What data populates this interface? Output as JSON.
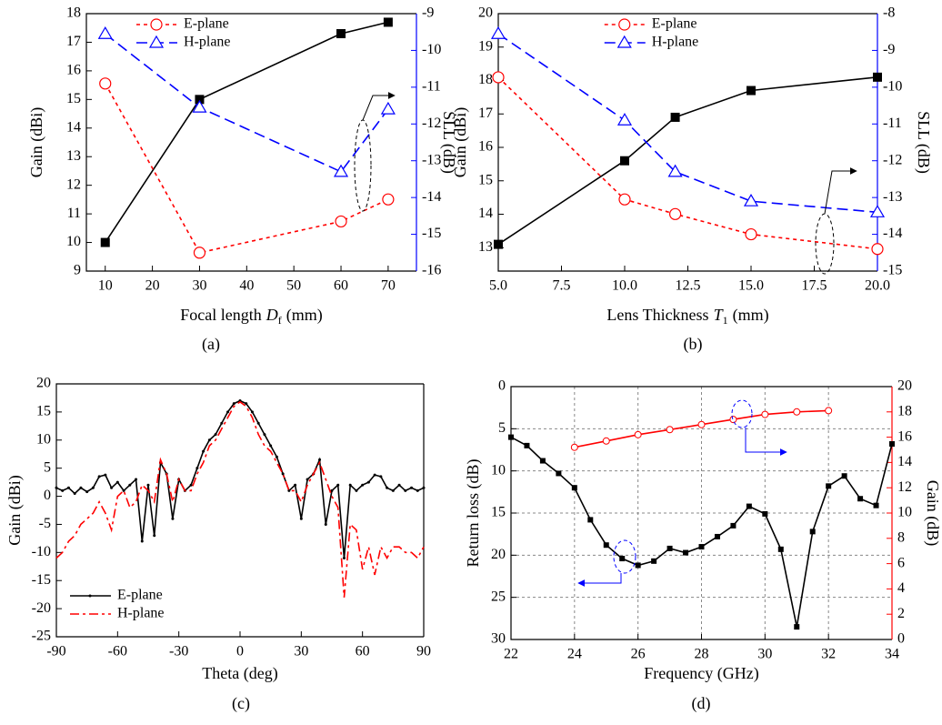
{
  "chart_data": [
    {
      "type": "line",
      "xlabel": {
        "text": "Focal length",
        "symbol": "D",
        "sub": "f",
        "unit": "(mm)"
      },
      "ylabel": "Gain (dBi)",
      "y2label": "SLL (dB)",
      "caption": "(a)",
      "xlim": [
        6,
        76
      ],
      "xticks": [
        10,
        20,
        30,
        40,
        50,
        60,
        70
      ],
      "ylim": [
        9,
        18
      ],
      "yticks": [
        9,
        10,
        11,
        12,
        13,
        14,
        15,
        16,
        17,
        18
      ],
      "y2lim": [
        -16,
        -9
      ],
      "y2ticks": [
        -16,
        -15,
        -14,
        -13,
        -12,
        -11,
        -10,
        -9
      ],
      "y2color": "#0000ff",
      "grid": false,
      "legend": "upper left",
      "series": [
        {
          "color": "#000000",
          "linestyle": "solid",
          "marker": "square",
          "x": [
            10,
            30,
            60,
            70
          ],
          "values": [
            10,
            15,
            17.3,
            17.7
          ]
        },
        {
          "name": "E-plane",
          "color": "#ff0000",
          "linestyle": "dotted",
          "marker": "circle",
          "axis": "y2",
          "x": [
            10,
            30,
            60,
            70
          ],
          "values": [
            -10.9,
            -15.5,
            -14.65,
            -14.05
          ]
        },
        {
          "name": "H-plane",
          "color": "#0000ff",
          "linestyle": "dashed",
          "marker": "triangle",
          "axis": "y2",
          "x": [
            10,
            30,
            60,
            70
          ],
          "values": [
            -9.55,
            -11.55,
            -13.3,
            -11.6
          ]
        }
      ]
    },
    {
      "type": "line",
      "xlabel": {
        "text": "Lens Thickness",
        "symbol": "T",
        "sub": "1",
        "unit": "(mm)"
      },
      "ylabel": "Gain (dBi)",
      "y2label": "SLL (dB)",
      "caption": "(b)",
      "xlim": [
        5,
        20
      ],
      "xticks": [
        {
          "value": 5,
          "label": "5.0"
        },
        {
          "value": 7.5,
          "label": "7.5"
        },
        {
          "value": 10,
          "label": "10.0"
        },
        {
          "value": 12.5,
          "label": "12.5"
        },
        {
          "value": 15,
          "label": "15.0"
        },
        {
          "value": 17.5,
          "label": "17.5"
        },
        {
          "value": 20,
          "label": "20.0"
        }
      ],
      "ylim": [
        12.3,
        20
      ],
      "yticks": [
        13,
        14,
        15,
        16,
        17,
        18,
        19,
        20
      ],
      "y2lim": [
        -15,
        -8
      ],
      "y2ticks": [
        -15,
        -14,
        -13,
        -12,
        -11,
        -10,
        -9,
        -8
      ],
      "y2color": "#0000ff",
      "grid": false,
      "legend": "upper center",
      "series": [
        {
          "color": "#000000",
          "linestyle": "solid",
          "marker": "square",
          "x": [
            5,
            10,
            12,
            15,
            20
          ],
          "values": [
            13.1,
            15.6,
            16.9,
            17.7,
            18.1
          ]
        },
        {
          "name": "E-plane",
          "color": "#ff0000",
          "linestyle": "dotted",
          "marker": "circle",
          "axis": "y2",
          "x": [
            5,
            10,
            12,
            15,
            20
          ],
          "values": [
            -9.73,
            -13.05,
            -13.45,
            -14.0,
            -14.4
          ]
        },
        {
          "name": "H-plane",
          "color": "#0000ff",
          "linestyle": "dashed",
          "marker": "triangle",
          "axis": "y2",
          "x": [
            5,
            10,
            12,
            15,
            20
          ],
          "values": [
            -8.55,
            -10.9,
            -12.3,
            -13.1,
            -13.4
          ]
        }
      ]
    },
    {
      "type": "line",
      "xlabel": "Theta (deg)",
      "ylabel": "Gain (dBi)",
      "caption": "(c)",
      "xlim": [
        -90,
        90
      ],
      "xticks": [
        -90,
        -60,
        -30,
        0,
        30,
        60,
        90
      ],
      "ylim": [
        -25,
        20
      ],
      "yticks": [
        -25,
        -20,
        -15,
        -10,
        -5,
        0,
        5,
        10,
        15,
        20
      ],
      "grid": false,
      "legend": "lower left",
      "x": [
        -90,
        -87,
        -84,
        -81,
        -78,
        -75,
        -72,
        -69,
        -66,
        -63,
        -60,
        -57,
        -54,
        -51,
        -48,
        -45,
        -42,
        -39,
        -36,
        -33,
        -30,
        -27,
        -24,
        -21,
        -18,
        -15,
        -12,
        -9,
        -6,
        -3,
        0,
        3,
        6,
        9,
        12,
        15,
        18,
        21,
        24,
        27,
        30,
        33,
        36,
        39,
        42,
        45,
        48,
        51,
        54,
        57,
        60,
        63,
        66,
        69,
        72,
        75,
        78,
        81,
        84,
        87,
        90
      ],
      "series": [
        {
          "name": "E-plane",
          "color": "#000000",
          "linestyle": "solid",
          "marker": "dot",
          "values": [
            1.5,
            1,
            1.5,
            0.5,
            1.5,
            0.8,
            1.5,
            3.5,
            3.8,
            1.5,
            2.5,
            1,
            2,
            3,
            -8,
            2,
            -7,
            6,
            4,
            -4,
            3,
            1,
            2,
            5,
            8,
            10,
            11,
            13,
            15,
            16.5,
            17,
            16.5,
            15,
            13,
            11,
            9,
            7,
            4,
            1,
            2,
            -4,
            3,
            4,
            6.5,
            -5,
            1,
            2,
            -11,
            2,
            1,
            2,
            2.5,
            3.8,
            3.5,
            1.5,
            1,
            2,
            1,
            1.5,
            1,
            1.5
          ]
        },
        {
          "name": "H-plane",
          "color": "#ff0000",
          "linestyle": "dashdot",
          "marker": "none",
          "values": [
            -11,
            -10,
            -8,
            -7,
            -5,
            -4,
            -3,
            -1,
            -3,
            -6,
            0,
            1,
            -2,
            -1,
            2,
            1,
            -1,
            6.5,
            4,
            -1,
            3,
            1,
            1,
            4,
            6,
            9,
            10,
            12,
            14,
            16,
            16.8,
            16,
            14,
            11,
            9,
            8,
            6,
            4,
            1,
            1,
            -1,
            2,
            4,
            6,
            3,
            0,
            -2,
            -18,
            -5,
            -6,
            -13,
            -9,
            -14,
            -9,
            -11,
            -9,
            -9,
            -10,
            -10,
            -11,
            -9
          ]
        }
      ]
    },
    {
      "type": "line",
      "xlabel": "Frequency (GHz)",
      "ylabel": "Return loss (dB)",
      "y2label": "Gain (dB)",
      "caption": "(d)",
      "xlim": [
        22,
        34
      ],
      "xticks": [
        22,
        24,
        26,
        28,
        30,
        32,
        34
      ],
      "ylim": [
        30,
        0
      ],
      "yticks": [
        0,
        5,
        10,
        15,
        20,
        25,
        30
      ],
      "y2lim": [
        0,
        20
      ],
      "y2ticks": [
        0,
        2,
        4,
        6,
        8,
        10,
        12,
        14,
        16,
        18,
        20
      ],
      "y2color": "#ff0000",
      "grid": true,
      "series": [
        {
          "color": "#000000",
          "linestyle": "solid",
          "marker": "square-small",
          "x": [
            22,
            22.5,
            23,
            23.5,
            24,
            24.5,
            25,
            25.5,
            26,
            26.5,
            27,
            27.5,
            28,
            28.5,
            29,
            29.5,
            30,
            30.5,
            31,
            31.5,
            32,
            32.5,
            33,
            33.5,
            34
          ],
          "values": [
            6,
            7,
            8.8,
            10.3,
            12,
            15.8,
            18.8,
            20.4,
            21.2,
            20.7,
            19.2,
            19.7,
            19,
            17.8,
            16.5,
            14.2,
            15.1,
            19.3,
            28.5,
            17.2,
            11.8,
            10.6,
            13.3,
            14.1,
            6.8
          ]
        },
        {
          "color": "#ff0000",
          "linestyle": "solid",
          "marker": "circle-small",
          "axis": "y2",
          "x": [
            24,
            25,
            26,
            27,
            28,
            29,
            30,
            31,
            32
          ],
          "values": [
            15.2,
            15.7,
            16.2,
            16.6,
            17.0,
            17.4,
            17.8,
            18.0,
            18.1
          ]
        }
      ]
    }
  ]
}
